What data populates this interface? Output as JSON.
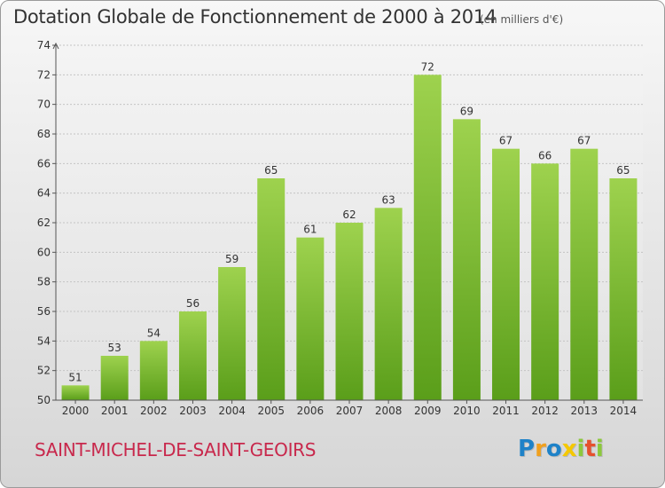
{
  "chart_data": {
    "type": "bar",
    "title": "Dotation Globale de Fonctionnement de 2000 à 2014",
    "subtitle": "(en milliers d'€)",
    "categories": [
      "2000",
      "2001",
      "2002",
      "2003",
      "2004",
      "2005",
      "2006",
      "2007",
      "2008",
      "2009",
      "2010",
      "2011",
      "2012",
      "2013",
      "2014"
    ],
    "values": [
      51,
      53,
      54,
      56,
      59,
      65,
      61,
      62,
      63,
      72,
      69,
      67,
      66,
      67,
      65
    ],
    "ylim": [
      50,
      74
    ],
    "yticks": [
      50,
      52,
      54,
      56,
      58,
      60,
      62,
      64,
      66,
      68,
      70,
      72,
      74
    ],
    "grid": true,
    "bar_color": "#7dba2f",
    "data_labels": true
  },
  "footer": {
    "town": "SAINT-MICHEL-DE-SAINT-GEOIRS",
    "logo_text": "Proxiti"
  },
  "colors": {
    "town": "#c8284c",
    "bar_top": "#9ed24e",
    "bar_bottom": "#5a9e1a"
  }
}
